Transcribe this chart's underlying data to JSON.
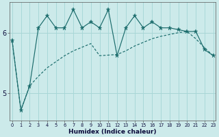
{
  "xlabel": "Humidex (Indice chaleur)",
  "bg_color": "#cceaea",
  "line_color": "#1a6b6b",
  "grid_color": "#a8d8d8",
  "red_line_color": "#cc4444",
  "x_ticks": [
    0,
    1,
    2,
    3,
    4,
    5,
    6,
    7,
    8,
    9,
    10,
    11,
    12,
    13,
    14,
    15,
    16,
    17,
    18,
    19,
    20,
    21,
    22,
    23
  ],
  "y_ticks": [
    5,
    6
  ],
  "ylim": [
    4.55,
    6.5
  ],
  "xlim": [
    -0.3,
    23.3
  ],
  "main_y": [
    5.87,
    4.72,
    5.12,
    6.08,
    6.28,
    6.08,
    6.08,
    6.38,
    6.08,
    6.18,
    6.08,
    6.38,
    5.62,
    6.08,
    6.28,
    6.08,
    6.18,
    6.08,
    6.08,
    6.05,
    6.02,
    6.02,
    5.72,
    5.62
  ],
  "smooth_y": [
    5.87,
    4.72,
    5.12,
    5.28,
    5.42,
    5.52,
    5.62,
    5.7,
    5.76,
    5.82,
    5.62,
    5.63,
    5.64,
    5.7,
    5.78,
    5.84,
    5.9,
    5.94,
    5.97,
    6.0,
    6.02,
    5.9,
    5.75,
    5.62
  ]
}
